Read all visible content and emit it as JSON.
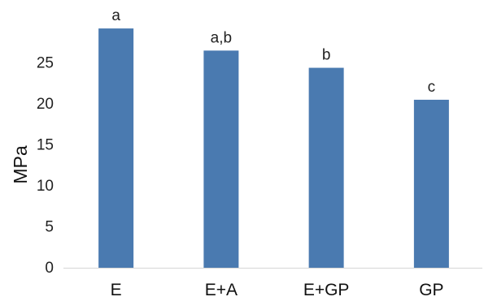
{
  "chart_data": {
    "type": "bar",
    "title": "",
    "xlabel": "",
    "ylabel": "MPa",
    "categories": [
      "E",
      "E+A",
      "E+GP",
      "GP"
    ],
    "values": [
      29.2,
      26.5,
      24.4,
      20.5
    ],
    "data_labels": [
      "a",
      "a,b",
      "b",
      "c"
    ],
    "ylim": [
      0,
      30
    ],
    "yticks": [
      0,
      5,
      10,
      15,
      20,
      25
    ],
    "grid": false,
    "legend": "none",
    "bar_color": "#4a7ab0",
    "axis_color": "#d6d6d6"
  }
}
